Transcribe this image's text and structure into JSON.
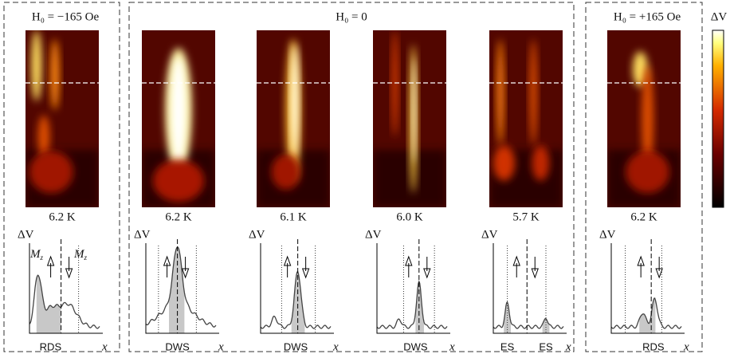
{
  "groups": [
    {
      "title": "H₀ = −165 Oe"
    },
    {
      "title": "H₀ = 0"
    },
    {
      "title": "H₀ = +165 Oe"
    }
  ],
  "colorbar": {
    "label": "ΔV"
  },
  "axis_labels": {
    "y": "ΔV",
    "x": "x"
  },
  "magnetization": {
    "base": "M",
    "sub": "z"
  },
  "panels": [
    {
      "temperature": "6.2 K",
      "structures": [
        "RDS"
      ]
    },
    {
      "temperature": "6.2 K",
      "structures": [
        "DWS"
      ]
    },
    {
      "temperature": "6.1 K",
      "structures": [
        "DWS"
      ]
    },
    {
      "temperature": "6.0 K",
      "structures": [
        "DWS"
      ]
    },
    {
      "temperature": "5.7 K",
      "structures": [
        "ES",
        "ES"
      ]
    },
    {
      "temperature": "6.2 K",
      "structures": [
        "RDS"
      ]
    }
  ]
}
